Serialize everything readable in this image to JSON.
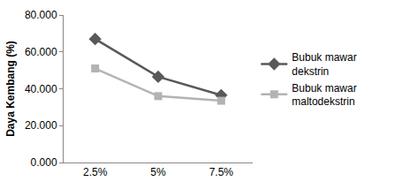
{
  "chart_data": {
    "type": "line",
    "y_label": "Daya Kembang (%)",
    "categories": [
      "2.5%",
      "5%",
      "7.5%"
    ],
    "series": [
      {
        "name": "Bubuk mawar dekstrin",
        "color": "#595959",
        "marker": "diamond",
        "line_style": "solid",
        "values": [
          67.0,
          46.5,
          36.5
        ]
      },
      {
        "name": "Bubuk mawar maltodekstrin",
        "color": "#b3b3b3",
        "marker": "square",
        "line_style": "solid",
        "values": [
          51.0,
          36.0,
          33.5
        ]
      }
    ],
    "ylim": [
      0,
      80
    ],
    "yticks": [
      {
        "value": 0,
        "label": "0.000"
      },
      {
        "value": 20,
        "label": "20.000"
      },
      {
        "value": 40,
        "label": "40.000"
      },
      {
        "value": 60,
        "label": "60.000"
      },
      {
        "value": 80,
        "label": "80.000"
      }
    ],
    "grid": false,
    "legend": "right"
  }
}
